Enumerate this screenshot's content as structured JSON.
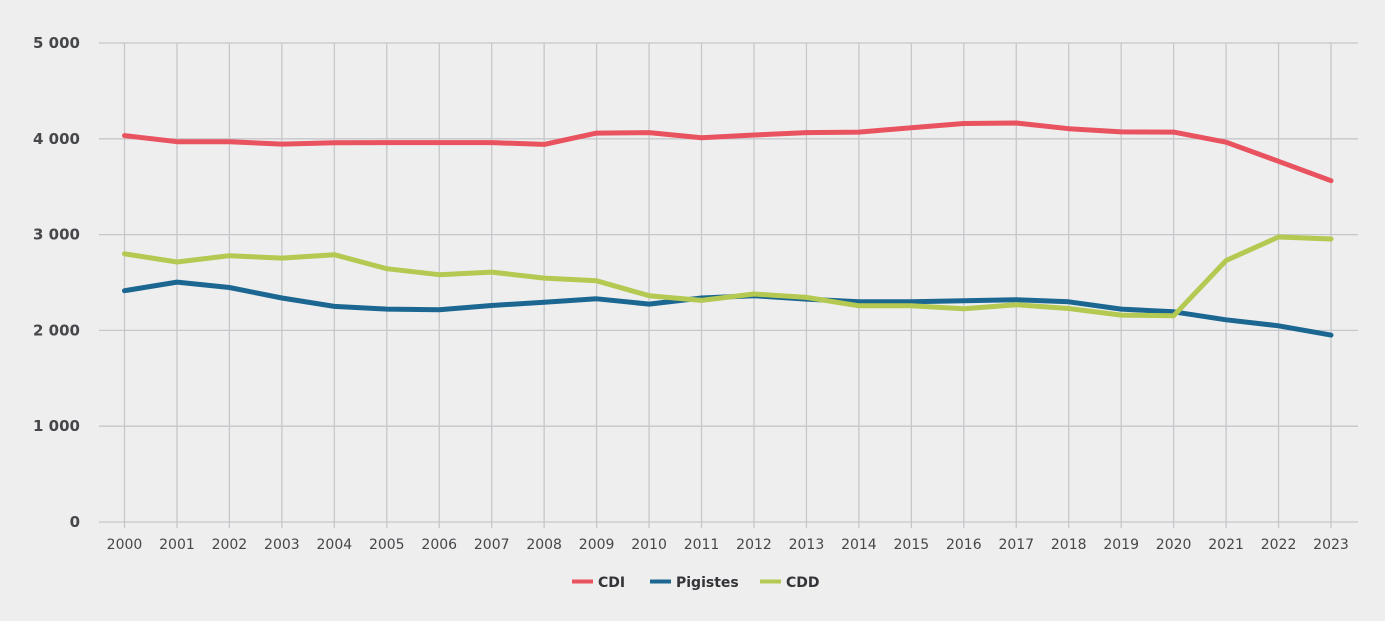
{
  "chart_data": {
    "type": "line",
    "title": "",
    "xlabel": "",
    "ylabel": "",
    "ylim": [
      0,
      5000
    ],
    "yticks": [
      0,
      1000,
      2000,
      3000,
      4000,
      5000
    ],
    "ytick_labels": [
      "0",
      "1 000",
      "2 000",
      "3 000",
      "4 000",
      "5 000"
    ],
    "grid": true,
    "legend_position": "bottom-center",
    "categories": [
      "2000",
      "2001",
      "2002",
      "2003",
      "2004",
      "2005",
      "2006",
      "2007",
      "2008",
      "2009",
      "2010",
      "2011",
      "2012",
      "2013",
      "2014",
      "2015",
      "2016",
      "2017",
      "2018",
      "2019",
      "2020",
      "2021",
      "2022",
      "2023"
    ],
    "series": [
      {
        "name": "CDI",
        "color": "#e9525f",
        "values": [
          4033,
          3970,
          3970,
          3945,
          3958,
          3960,
          3960,
          3960,
          3942,
          4060,
          4065,
          4010,
          4040,
          4065,
          4070,
          4115,
          4160,
          4165,
          4105,
          4072,
          4070,
          3964,
          3765,
          3563
        ]
      },
      {
        "name": "Pigistes",
        "color": "#1b6791",
        "values": [
          2414,
          2504,
          2448,
          2338,
          2250,
          2222,
          2215,
          2260,
          2294,
          2330,
          2275,
          2338,
          2362,
          2327,
          2300,
          2299,
          2309,
          2320,
          2299,
          2222,
          2194,
          2111,
          2048,
          1951
        ]
      },
      {
        "name": "CDD",
        "color": "#b3c951",
        "values": [
          2800,
          2714,
          2780,
          2755,
          2790,
          2644,
          2581,
          2609,
          2546,
          2518,
          2362,
          2313,
          2380,
          2344,
          2257,
          2257,
          2226,
          2268,
          2229,
          2160,
          2152,
          2730,
          2975,
          2954
        ]
      }
    ]
  }
}
